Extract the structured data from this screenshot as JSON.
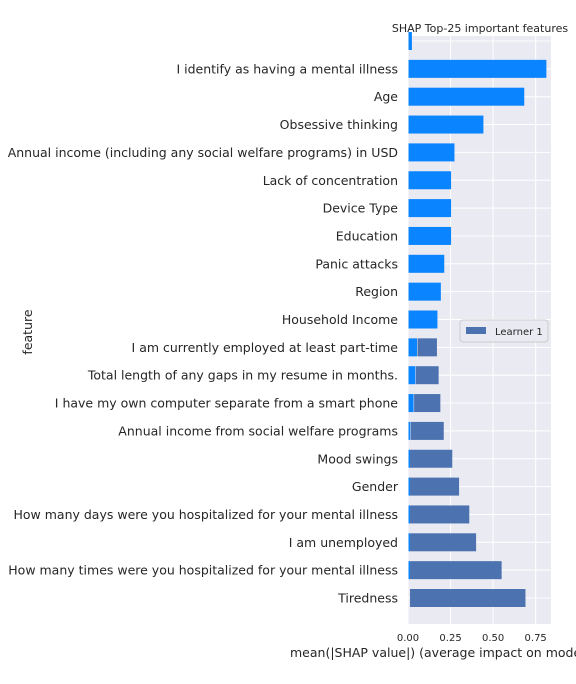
{
  "chart_data": {
    "type": "bar",
    "orientation": "horizontal",
    "title": "SHAP Top-25 important features",
    "xlabel": "mean(|SHAP value|) (average impact on model ou",
    "ylabel": "feature",
    "xlim": [
      0,
      0.84
    ],
    "xticks": [
      "0.00",
      "0.25",
      "0.50",
      "0.75"
    ],
    "xtick_values": [
      0,
      0.25,
      0.5,
      0.75
    ],
    "grid": true,
    "legend": {
      "position": "right",
      "entries": [
        "Learner 1"
      ]
    },
    "colors": {
      "overlay": "#0a84ff",
      "learner": "#4c72b0",
      "background": "#eaeaf2"
    },
    "categories": [
      "",
      "I identify as having a mental illness",
      "Age",
      "Obsessive thinking",
      "Annual income (including any social welfare programs) in USD",
      "Lack of concentration",
      "Device Type",
      "Education",
      "Panic attacks",
      "Region",
      "Household Income",
      "I am currently employed at least part-time",
      "Total length of any gaps in my resume in months.",
      "I have my own computer separate from a smart phone",
      "Annual income from social welfare programs",
      "Mood swings",
      "Gender",
      "How many days were you hospitalized for your mental illness",
      "I am unemployed",
      "How many times were you hospitalized for your mental illness",
      "Tiredness"
    ],
    "series": [
      {
        "name": "",
        "color": "#0a84ff",
        "values": [
          0.02,
          0.81,
          0.68,
          0.44,
          0.27,
          0.25,
          0.25,
          0.25,
          0.21,
          0.19,
          0.17,
          0.05,
          0.04,
          0.03,
          0.01,
          0.005,
          0.005,
          0.005,
          0.005,
          0.005,
          0
        ]
      },
      {
        "name": "Learner 1",
        "color": "#4c72b0",
        "values": [
          0,
          0,
          0,
          0,
          0,
          0,
          0,
          0,
          0,
          0,
          0,
          0.17,
          0.18,
          0.19,
          0.21,
          0.26,
          0.3,
          0.36,
          0.4,
          0.55,
          0.69
        ]
      }
    ]
  }
}
